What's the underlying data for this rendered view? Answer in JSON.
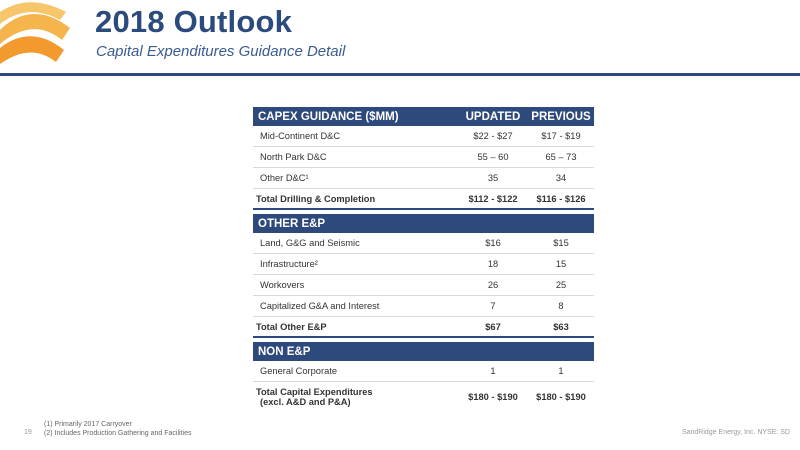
{
  "header": {
    "title": "2018 Outlook",
    "subtitle": "Capital Expenditures Guidance Detail"
  },
  "table": {
    "col_updated": "UPDATED",
    "col_previous": "PREVIOUS",
    "sections": [
      {
        "heading": "CAPEX GUIDANCE ($MM)",
        "rows": [
          {
            "label": "Mid-Continent D&C",
            "updated": "$22 - $27",
            "previous": "$17 - $19"
          },
          {
            "label": "North Park D&C",
            "updated": "55 – 60",
            "previous": "65 – 73"
          },
          {
            "label": "Other D&C¹",
            "updated": "35",
            "previous": "34"
          }
        ],
        "total": {
          "label": "Total Drilling & Completion",
          "updated": "$112 - $122",
          "previous": "$116 - $126"
        }
      },
      {
        "heading": "OTHER E&P",
        "rows": [
          {
            "label": "Land, G&G and Seismic",
            "updated": "$16",
            "previous": "$15"
          },
          {
            "label": "Infrastructure²",
            "updated": "18",
            "previous": "15"
          },
          {
            "label": "Workovers",
            "updated": "26",
            "previous": "25"
          },
          {
            "label": "Capitalized G&A and Interest",
            "updated": "7",
            "previous": "8"
          }
        ],
        "total": {
          "label": "Total Other E&P",
          "updated": "$67",
          "previous": "$63"
        }
      },
      {
        "heading": "NON E&P",
        "rows": [
          {
            "label": "General Corporate",
            "updated": "1",
            "previous": "1"
          }
        ],
        "grand_total": {
          "label_line1": "Total Capital Expenditures",
          "label_line2": "(excl. A&D and P&A)",
          "updated": "$180 - $190",
          "previous": "$180 - $190"
        }
      }
    ]
  },
  "footnotes": {
    "note1": "(1)   Primarily 2017 Carryover",
    "note2": "(2)   Includes Production Gathering and Facilities"
  },
  "page_number": "19",
  "company": "SandRidge Energy, Inc. NYSE: SD",
  "colors": {
    "brand_navy": "#2e4a7d",
    "logo_orange": "#f29a2e"
  }
}
